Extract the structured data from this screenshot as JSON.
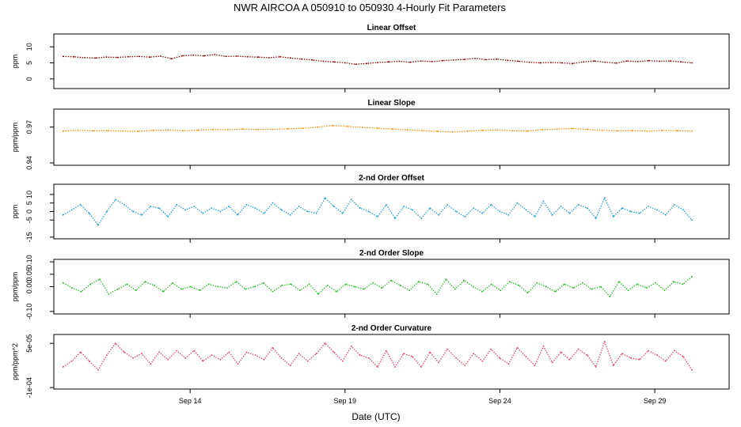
{
  "title": "NWR   AIRCOA A   050910 to 050930   4-Hourly Fit Parameters",
  "chart_data": {
    "type": "scatter",
    "xlabel": "Date (UTC)",
    "x_ticks": [
      {
        "day": 14,
        "label": "Sep 14"
      },
      {
        "day": 19,
        "label": "Sep 19"
      },
      {
        "day": 24,
        "label": "Sep 24"
      },
      {
        "day": 29,
        "label": "Sep 29"
      }
    ],
    "xlim": [
      9.6,
      31.4
    ],
    "x_start": 9.9,
    "x_end": 30.2,
    "panels": [
      {
        "title": "Linear Offset",
        "ylabel": "ppm",
        "ylim": [
          -3,
          14
        ],
        "y_ticks": [
          {
            "v": 0,
            "label": "0"
          },
          {
            "v": 5,
            "label": "5"
          },
          {
            "v": 10,
            "label": "10"
          }
        ],
        "color": "#8b0000",
        "series": [
          7,
          6.9,
          6.6,
          6.5,
          6.8,
          6.7,
          6.9,
          7.0,
          6.8,
          7.1,
          6.3,
          7.2,
          7.4,
          7.2,
          7.6,
          7.0,
          7.1,
          6.9,
          6.8,
          6.6,
          6.9,
          6.5,
          6.2,
          5.9,
          5.5,
          5.3,
          5.0,
          4.6,
          4.8,
          5.1,
          5.3,
          5.5,
          5.2,
          5.6,
          5.4,
          5.7,
          5.9,
          6.1,
          6.4,
          6.0,
          6.2,
          5.8,
          5.5,
          5.2,
          5.0,
          5.1,
          5.0,
          4.8,
          5.3,
          5.6,
          5.2,
          4.9,
          5.6,
          5.4,
          5.7,
          5.5,
          5.6,
          5.3,
          5.0
        ]
      },
      {
        "title": "Linear Slope",
        "ylabel": "ppm/ppm",
        "ylim": [
          0.938,
          0.985
        ],
        "y_ticks": [
          {
            "v": 0.94,
            "label": "0.94"
          },
          {
            "v": 0.97,
            "label": "0.97"
          }
        ],
        "color": "#ff8c00",
        "series": [
          0.9666,
          0.9672,
          0.9668,
          0.967,
          0.9665,
          0.9663,
          0.9671,
          0.9675,
          0.9669,
          0.9673,
          0.968,
          0.9677,
          0.9683,
          0.9679,
          0.9681,
          0.9685,
          0.969,
          0.97,
          0.9712,
          0.9705,
          0.9698,
          0.969,
          0.9684,
          0.9676,
          0.967,
          0.9664,
          0.9658,
          0.9665,
          0.9672,
          0.9675,
          0.9669,
          0.9666,
          0.9678,
          0.9683,
          0.9688,
          0.968,
          0.9672,
          0.9668,
          0.967,
          0.9665,
          0.9671,
          0.9669,
          0.9666
        ]
      },
      {
        "title": "2-nd Order Offset",
        "ylabel": "ppm",
        "ylim": [
          -16,
          16
        ],
        "y_ticks": [
          {
            "v": -15,
            "label": "-15"
          },
          {
            "v": -5,
            "label": "-5"
          },
          {
            "v": 0,
            "label": "0"
          },
          {
            "v": 5,
            "label": "5"
          },
          {
            "v": 10,
            "label": "10"
          }
        ],
        "color": "#1e9bd7",
        "series": [
          -2,
          1,
          4,
          -1,
          -8,
          0,
          7,
          4,
          0,
          -2,
          3,
          2,
          -3,
          4,
          1,
          3,
          -1,
          2,
          0,
          3,
          -2,
          4,
          2,
          -1,
          5,
          1,
          -2,
          3,
          0,
          -1,
          8,
          3,
          -1,
          7,
          2,
          0,
          -3,
          4,
          -4,
          3,
          1,
          -4,
          2,
          -2,
          4,
          0,
          -3,
          2,
          -1,
          4,
          0,
          -2,
          5,
          1,
          -3,
          6,
          -2,
          3,
          -1,
          4,
          2,
          -4,
          8,
          -3,
          2,
          0,
          -1,
          3,
          1,
          -2,
          4,
          1,
          -5
        ]
      },
      {
        "title": "2-nd Order Slope",
        "ylabel": "ppm/ppm",
        "ylim": [
          -0.11,
          0.11
        ],
        "y_ticks": [
          {
            "v": -0.1,
            "label": "-0.10"
          },
          {
            "v": 0.0,
            "label": "0.00"
          },
          {
            "v": 0.05,
            "label": "0.05"
          },
          {
            "v": 0.1,
            "label": "0.10"
          }
        ],
        "color": "#22bb22",
        "series": [
          0.015,
          -0.005,
          -0.02,
          0.01,
          0.03,
          -0.03,
          -0.01,
          0.01,
          -0.015,
          0.02,
          0.005,
          -0.02,
          0.015,
          -0.01,
          0.0,
          -0.015,
          0.01,
          0.0,
          -0.005,
          0.02,
          -0.01,
          0.0,
          0.015,
          -0.02,
          0.005,
          0.01,
          -0.015,
          0.01,
          -0.03,
          0.005,
          -0.02,
          0.01,
          0.0,
          -0.01,
          0.015,
          -0.005,
          0.025,
          0.005,
          -0.015,
          0.02,
          0.01,
          -0.03,
          0.03,
          -0.01,
          0.025,
          0.0,
          -0.02,
          0.01,
          -0.015,
          0.02,
          0.005,
          -0.025,
          0.015,
          0.0,
          -0.02,
          0.01,
          -0.005,
          0.015,
          -0.01,
          0.0,
          -0.04,
          0.02,
          -0.015,
          0.01,
          -0.005,
          0.015,
          -0.015,
          0.02,
          0.01,
          0.04
        ]
      },
      {
        "title": "2-nd Order Curvature",
        "ylabel": "ppm/ppm^2",
        "ylim": [
          -0.000105,
          8e-05
        ],
        "y_ticks": [
          {
            "v": -0.0001,
            "label": "-1e-04"
          },
          {
            "v": 5e-05,
            "label": "5e-05"
          }
        ],
        "color": "#e8405f",
        "series": [
          -3e-05,
          -1e-05,
          2e-05,
          -1e-05,
          -4e-05,
          1e-05,
          5e-05,
          2e-05,
          0.0,
          1.5e-05,
          -2e-05,
          2e-05,
          -5e-06,
          2.5e-05,
          0.0,
          2.5e-05,
          -1e-05,
          1e-05,
          -5e-06,
          2e-05,
          -2e-05,
          2e-05,
          1e-05,
          -5e-06,
          3.5e-05,
          0.0,
          -2.5e-05,
          1.5e-05,
          -1e-05,
          1.5e-05,
          5e-05,
          2e-05,
          -1e-05,
          4e-05,
          1e-05,
          0.0,
          -3e-05,
          2.5e-05,
          -3e-05,
          1.5e-05,
          5e-06,
          -3e-05,
          2e-05,
          -1.5e-05,
          3e-05,
          0.0,
          -2.5e-05,
          1.5e-05,
          -1e-05,
          3e-05,
          0.0,
          -2e-05,
          3.5e-05,
          5e-06,
          -2.5e-05,
          4e-05,
          -1.5e-05,
          2e-05,
          -5e-06,
          3e-05,
          1e-05,
          -3e-05,
          5.5e-05,
          -2.5e-05,
          1.5e-05,
          0.0,
          -5e-06,
          2.5e-05,
          1e-05,
          -1e-05,
          2.5e-05,
          5e-06,
          -4e-05
        ]
      }
    ]
  }
}
